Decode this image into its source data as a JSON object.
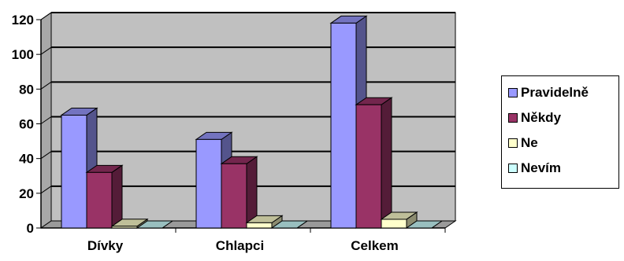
{
  "chart_data": {
    "type": "bar",
    "categories": [
      "Dívky",
      "Chlapci",
      "Celkem"
    ],
    "series": [
      {
        "name": "Pravidelně",
        "values": [
          65,
          51,
          118
        ],
        "color": "#9999ff"
      },
      {
        "name": "Někdy",
        "values": [
          32,
          37,
          71
        ],
        "color": "#993366"
      },
      {
        "name": "Ne",
        "values": [
          1,
          3,
          5
        ],
        "color": "#ffffcc"
      },
      {
        "name": "Nevím",
        "values": [
          0,
          0,
          0
        ],
        "color": "#ccffff"
      }
    ],
    "ylim": [
      0,
      120
    ],
    "yticks": [
      "0",
      "20",
      "40",
      "60",
      "80",
      "100",
      "120"
    ],
    "grid": true,
    "three_d": true,
    "legend_position": "right",
    "plot_background": "#c0c0c0"
  }
}
